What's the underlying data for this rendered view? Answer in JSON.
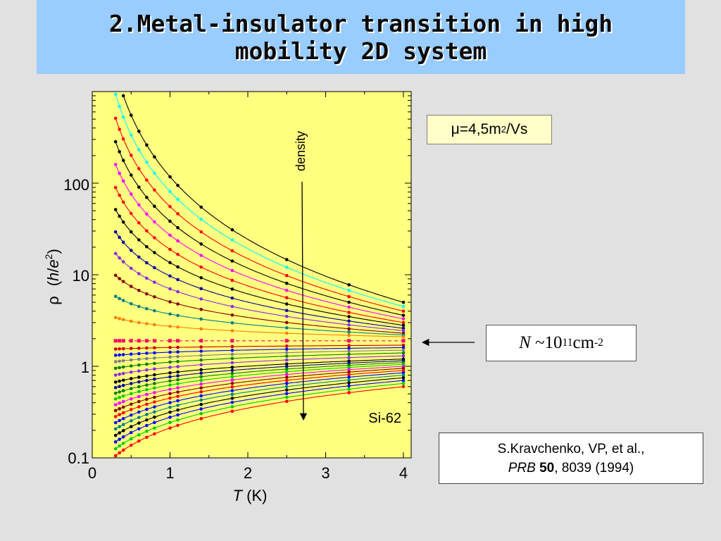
{
  "slide": {
    "title": "2.Metal-insulator transition in high mobility 2D system"
  },
  "mobility": {
    "label_prefix": "μ=4,5m",
    "label_sup": "2",
    "label_suffix": "/Vs"
  },
  "density_note": {
    "symbol": "N",
    "tilde": "~10",
    "exp": "11",
    "unit": "cm",
    "unit_exp": "-2"
  },
  "reference": {
    "line1": "S.Kravchenko, VP, et al.,",
    "journal": "PRB",
    "volume": "50",
    "rest": ", 8039 (1994)"
  },
  "chart_data": {
    "type": "line",
    "xlabel_symbol": "T",
    "xlabel_unit": "(K)",
    "ylabel_symbol": "ρ",
    "ylabel_unit_open": "(",
    "ylabel_unit_h": "h",
    "ylabel_unit_slash": "/",
    "ylabel_unit_e": "e",
    "ylabel_unit_exp": "2",
    "ylabel_unit_close": ")",
    "xlim": [
      0,
      4.1
    ],
    "ylim": [
      0.1,
      1000
    ],
    "yscale": "log",
    "x_ticks": [
      "0",
      "1",
      "2",
      "3",
      "4"
    ],
    "y_ticks": [
      {
        "value": 0.1,
        "label": "0.1"
      },
      {
        "value": 1,
        "label": "1"
      },
      {
        "value": 10,
        "label": "10"
      },
      {
        "value": 100,
        "label": "100"
      }
    ],
    "annotations": {
      "density_arrow": "density",
      "sample": "Si-62"
    },
    "background_color": "#ffff80",
    "x": [
      0.3,
      0.35,
      0.4,
      0.5,
      0.6,
      0.7,
      0.8,
      1.0,
      1.1,
      1.4,
      1.8,
      2.5,
      3.3,
      4.0
    ],
    "series": [
      {
        "color": "#000000",
        "end": 5.0
      },
      {
        "color": "#00ffff",
        "end": 4.5
      },
      {
        "color": "#ff0000",
        "end": 4.0
      },
      {
        "color": "#000000",
        "end": 3.6
      },
      {
        "color": "#ff00ff",
        "end": 3.3
      },
      {
        "color": "#ff0000",
        "end": 3.0
      },
      {
        "color": "#000000",
        "end": 2.8
      },
      {
        "color": "#000099",
        "end": 2.6
      },
      {
        "color": "#8a2be2",
        "end": 2.45
      },
      {
        "color": "#800000",
        "end": 2.3
      },
      {
        "color": "#008080",
        "end": 2.2
      },
      {
        "color": "#ff8000",
        "end": 2.1
      },
      {
        "color": "#ff0066",
        "end": 1.9,
        "dashed": true
      },
      {
        "color": "#cc0000",
        "end": 1.7
      },
      {
        "color": "#0000ff",
        "end": 1.6
      },
      {
        "color": "#808080",
        "end": 1.5
      },
      {
        "color": "#008000",
        "end": 1.4
      },
      {
        "color": "#8a2be2",
        "end": 1.3
      },
      {
        "color": "#000000",
        "end": 1.2
      },
      {
        "color": "#000099",
        "end": 1.15
      },
      {
        "color": "#008000",
        "end": 1.1
      },
      {
        "color": "#00cc00",
        "end": 1.05
      },
      {
        "color": "#ff00ff",
        "end": 1.0
      },
      {
        "color": "#800000",
        "end": 0.95
      },
      {
        "color": "#ff0000",
        "end": 0.9
      },
      {
        "color": "#0000ff",
        "end": 0.85
      },
      {
        "color": "#008080",
        "end": 0.8
      },
      {
        "color": "#000000",
        "end": 0.75
      },
      {
        "color": "#0000ff",
        "end": 0.7
      },
      {
        "color": "#00cc00",
        "end": 0.65
      },
      {
        "color": "#ff0000",
        "end": 0.6
      }
    ]
  }
}
